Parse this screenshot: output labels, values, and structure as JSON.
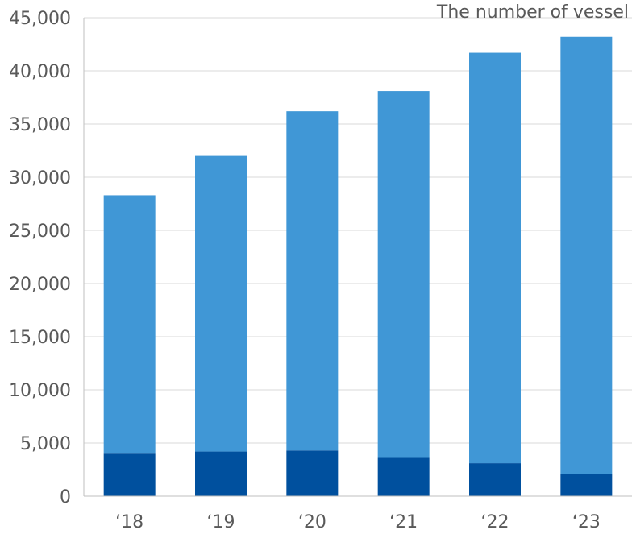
{
  "chart_data": {
    "type": "bar",
    "stacked": true,
    "title": "",
    "unit_label": "The number of vessel",
    "categories": [
      "‘18",
      "‘19",
      "‘20",
      "‘21",
      "‘22",
      "‘23"
    ],
    "series": [
      {
        "values": [
          4000,
          4200,
          4300,
          3600,
          3100,
          2100
        ],
        "color": "#00509E"
      },
      {
        "values": [
          24300,
          27800,
          31900,
          34500,
          38600,
          41100
        ],
        "color": "#4097D6"
      }
    ],
    "totals": [
      28300,
      32000,
      36200,
      38100,
      41700,
      43200
    ],
    "ylim": [
      0,
      45000
    ],
    "yticks": [
      "0",
      "5,000",
      "10,000",
      "15,000",
      "20,000",
      "25,000",
      "30,000",
      "35,000",
      "40,000",
      "45,000"
    ],
    "ytick_values": [
      0,
      5000,
      10000,
      15000,
      20000,
      25000,
      30000,
      35000,
      40000,
      45000
    ],
    "grid": true,
    "legend": "none"
  }
}
